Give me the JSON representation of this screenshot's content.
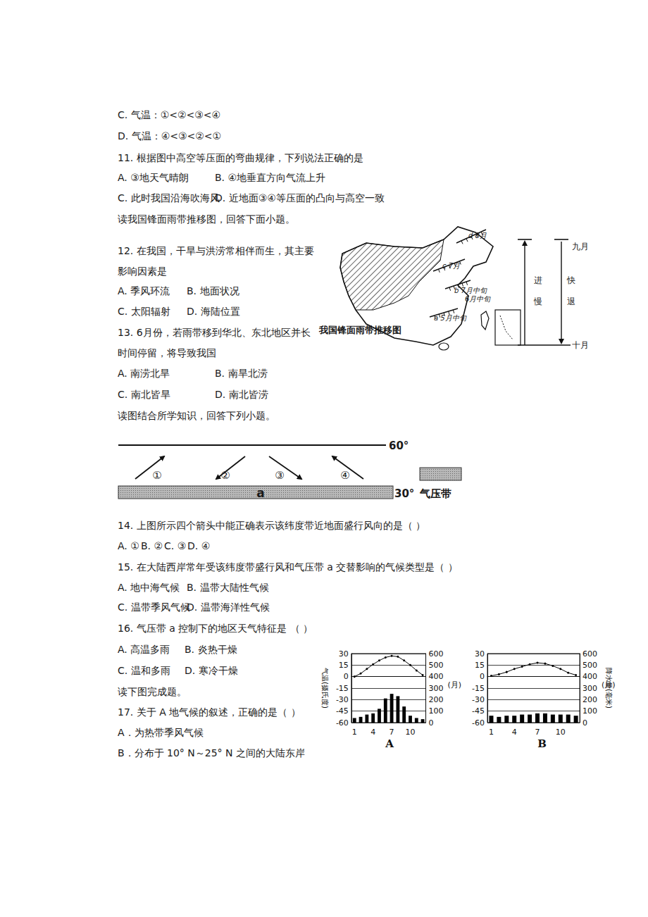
{
  "document": {
    "q10": {
      "options": [
        "C. 气温：①<②<③<④",
        "D. 气温：④<③<②<①"
      ]
    },
    "q11": {
      "stem": [
        "11. 根据图中高空等压面的弯曲规律，下列说法正确的是"
      ],
      "options": [
        "A. ③地天气晴朗",
        "B. ④地垂直方向气流上升",
        "C. 此时我国沿海吹海风",
        "D. 近地面③④等压面的凸向与高空一致"
      ]
    },
    "intro1": "读我国锋面雨带推移图，回答下面小题。",
    "q12": {
      "stem": [
        "12. 在我国，干旱与洪涝常相伴而生，其主要",
        "影响因素是"
      ],
      "options": [
        "A. 季风环流",
        "B. 地面状况",
        "C. 太阳辐射",
        "D. 海陆位置"
      ]
    },
    "q13": {
      "stem": [
        "13. 6月份，若雨带移到华北、东北地区并长",
        "时间停留，将导致我国"
      ],
      "options": [
        "A. 南涝北旱",
        "B. 南旱北涝",
        "C. 南北皆旱",
        "D. 南北皆涝"
      ]
    },
    "map": {
      "title": "我国锋面雨带推移图",
      "belt_labels": [
        "a 5月中旬",
        "6月中旬",
        "b 7月中旬",
        "c 7月",
        "d 8月"
      ],
      "slow_advance": [
        "进",
        "慢"
      ],
      "fast_retreat": [
        "快",
        "退"
      ],
      "start_month": "九月",
      "end_month": "十月"
    },
    "intro2": "读图结合所学知识，回答下列小题。",
    "belt_diagram": {
      "top_latitude": "60°",
      "bottom_latitude": "30°",
      "arrows": [
        "①",
        "②",
        "③",
        "④"
      ],
      "belt_label": "a",
      "legend": "气压带"
    },
    "q14": {
      "stem": [
        "14. 上图所示四个箭头中能正确表示该纬度带近地面盛行风向的是（    ）"
      ],
      "options": [
        "A. ①",
        "B. ②",
        "C. ③",
        "D. ④"
      ]
    },
    "q15": {
      "stem": [
        "15. 在大陆西岸常年受该纬度带盛行风和气压带 a 交替影响的气候类型是（    ）"
      ],
      "options": [
        "A. 地中海气候",
        "B. 温带大陆性气候",
        "C. 温带季风气候",
        "D. 温带海洋性气候"
      ]
    },
    "q16": {
      "stem": [
        "16. 气压带 a 控制下的地区天气特征是 （    ）"
      ],
      "options": [
        "A. 高温多雨",
        "B. 炎热干燥",
        "C. 温和多雨",
        "D. 寒冷干燥"
      ]
    },
    "intro3": "读下图完成题。",
    "q17": {
      "stem": [
        "17. 关于 A 地气候的叙述，正确的是（  ）"
      ],
      "options": [
        "A．为热带季风气候",
        "B．分布于 10° N～25° N 之间的大陆东岸"
      ]
    }
  },
  "chart_data": [
    {
      "type": "combo",
      "title": "A",
      "categories": [
        "1",
        null,
        null,
        "4",
        null,
        null,
        "7",
        null,
        null,
        "10",
        null,
        null
      ],
      "x_label": "(月)",
      "y_label": "气温(摄氏度)",
      "ylim": [
        -60,
        30
      ],
      "yticks": [
        -60,
        -45,
        -30,
        -15,
        0,
        15,
        30
      ],
      "y2lim": [
        0,
        600
      ],
      "y2ticks": [
        0,
        100,
        200,
        300,
        400,
        500,
        600
      ],
      "grid": true,
      "series": [
        {
          "type": "line",
          "color": "#000000",
          "marker": "circle",
          "values": [
            0,
            4,
            10,
            16,
            21,
            25,
            27,
            26,
            21,
            15,
            8,
            2
          ]
        },
        {
          "type": "bar",
          "axis": "y2",
          "color": "#000000",
          "values": [
            40,
            50,
            70,
            80,
            120,
            210,
            250,
            230,
            140,
            60,
            40,
            30
          ]
        }
      ]
    },
    {
      "type": "combo",
      "title": "B",
      "categories": [
        "1",
        null,
        null,
        "4",
        null,
        null,
        "7",
        null,
        null,
        "10",
        null,
        null
      ],
      "x_label": "(月)",
      "y2_label": "降水量(毫米)",
      "ylim": [
        -60,
        30
      ],
      "yticks": [
        -60,
        -45,
        -30,
        -15,
        0,
        15,
        30
      ],
      "y2lim": [
        0,
        600
      ],
      "y2ticks": [
        0,
        100,
        200,
        300,
        400,
        500,
        600
      ],
      "grid": true,
      "series": [
        {
          "type": "line",
          "color": "#000000",
          "marker": "circle",
          "values": [
            1,
            3,
            6,
            10,
            13,
            16,
            18,
            17,
            14,
            10,
            5,
            2
          ]
        },
        {
          "type": "bar",
          "axis": "y2",
          "color": "#000000",
          "values": [
            60,
            50,
            60,
            60,
            70,
            70,
            80,
            80,
            70,
            70,
            70,
            60
          ]
        }
      ]
    }
  ]
}
